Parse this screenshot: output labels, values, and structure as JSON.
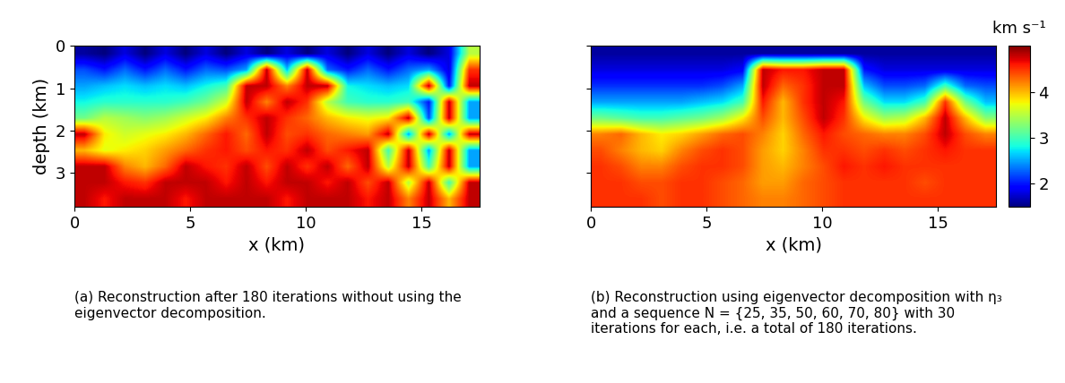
{
  "chart_data": [
    {
      "type": "heatmap",
      "title": "(a) Reconstruction after 180 iterations without using the eigenvector decomposition.",
      "x_label": "x (km)",
      "y_label": "depth (km)",
      "xlim": [
        0,
        17.5
      ],
      "ylim": [
        3.8,
        0
      ],
      "xticks": [
        0,
        5,
        10,
        15
      ],
      "yticks": [
        0,
        1,
        2,
        3
      ],
      "tick_labels": true,
      "cells": [
        [
          1.6,
          1.5,
          1.8,
          1.5,
          1.8,
          1.5,
          1.8,
          1.5,
          1.8,
          1.5,
          1.8,
          1.5,
          1.8,
          1.5,
          1.8,
          1.5,
          1.8,
          1.5,
          1.8,
          3.5
        ],
        [
          2.2,
          2.0,
          2.3,
          2.0,
          2.3,
          2.0,
          2.3,
          2.2,
          2.5,
          4.8,
          2.6,
          4.8,
          2.3,
          2.0,
          2.3,
          2.0,
          2.3,
          2.5,
          1.8,
          4.5
        ],
        [
          2.5,
          2.6,
          2.7,
          2.6,
          2.7,
          2.6,
          2.8,
          3.0,
          4.8,
          4.8,
          4.2,
          4.8,
          4.8,
          2.8,
          2.7,
          2.6,
          2.7,
          4.8,
          2.0,
          4.8
        ],
        [
          2.8,
          2.9,
          2.9,
          2.9,
          2.9,
          3.0,
          3.2,
          3.6,
          4.8,
          4.2,
          4.8,
          4.5,
          3.5,
          3.0,
          2.9,
          2.9,
          3.0,
          2.0,
          4.8,
          2.5
        ],
        [
          3.2,
          3.5,
          3.4,
          3.3,
          3.4,
          3.6,
          3.8,
          4.2,
          4.5,
          4.8,
          4.5,
          4.3,
          4.0,
          3.8,
          3.7,
          3.8,
          4.8,
          2.2,
          4.8,
          2.5
        ],
        [
          4.8,
          3.8,
          3.6,
          3.7,
          3.8,
          4.0,
          4.3,
          4.6,
          4.3,
          4.8,
          4.4,
          4.5,
          4.3,
          4.2,
          4.1,
          4.8,
          2.5,
          4.8,
          2.5,
          4.8
        ],
        [
          4.0,
          3.7,
          3.8,
          3.9,
          4.1,
          4.3,
          4.5,
          4.6,
          4.4,
          4.6,
          4.5,
          4.8,
          4.4,
          4.6,
          4.8,
          3.0,
          4.8,
          2.5,
          4.8,
          2.5
        ],
        [
          4.8,
          4.8,
          4.2,
          4.0,
          4.3,
          4.8,
          4.6,
          4.5,
          4.8,
          4.4,
          4.8,
          4.5,
          4.8,
          4.3,
          4.8,
          3.5,
          4.8,
          3.0,
          4.8,
          2.5
        ],
        [
          4.8,
          4.8,
          4.6,
          4.5,
          4.8,
          4.8,
          4.8,
          4.6,
          4.8,
          4.6,
          4.8,
          4.8,
          4.6,
          4.8,
          4.4,
          4.8,
          3.5,
          4.8,
          3.0,
          4.8
        ],
        [
          4.8,
          4.6,
          4.8,
          4.8,
          4.8,
          4.6,
          4.8,
          4.8,
          4.8,
          4.8,
          4.6,
          4.8,
          4.8,
          4.8,
          4.6,
          4.8,
          4.2,
          4.8,
          4.0,
          4.8
        ]
      ],
      "color_range": [
        1.5,
        5.0
      ]
    },
    {
      "type": "heatmap",
      "title": "(b) Reconstruction using eigenvector decomposition with η₃ and a sequence N = {25, 35, 50, 60, 70, 80} with 30 iterations for each, i.e. a total of 180 iterations.",
      "x_label": "x (km)",
      "xlim": [
        0,
        17.5
      ],
      "ylim": [
        3.8,
        0
      ],
      "xticks": [
        0,
        5,
        10,
        15
      ],
      "yticks": [
        0,
        1,
        2,
        3
      ],
      "tick_labels": "x",
      "cells": [
        [
          1.6,
          1.6,
          1.6,
          1.6,
          1.6,
          1.6,
          1.6,
          1.6,
          1.6,
          1.6,
          1.6,
          1.6,
          1.6,
          1.6,
          1.6,
          1.6,
          1.6,
          1.6,
          1.6,
          1.6
        ],
        [
          1.8,
          1.8,
          1.8,
          1.8,
          1.8,
          1.8,
          1.8,
          1.9,
          4.8,
          4.6,
          4.6,
          4.8,
          4.8,
          2.0,
          1.8,
          1.8,
          1.8,
          1.8,
          1.8,
          1.8
        ],
        [
          2.1,
          2.1,
          2.1,
          2.1,
          2.1,
          2.1,
          2.2,
          2.5,
          4.8,
          4.3,
          4.5,
          4.8,
          4.8,
          2.6,
          2.2,
          2.2,
          2.3,
          3.0,
          2.3,
          2.2
        ],
        [
          2.5,
          2.5,
          2.5,
          2.5,
          2.5,
          2.6,
          2.7,
          3.0,
          4.6,
          4.0,
          4.5,
          4.8,
          4.6,
          3.2,
          2.7,
          2.7,
          3.0,
          4.5,
          3.2,
          2.6
        ],
        [
          3.2,
          3.1,
          3.0,
          3.0,
          3.1,
          3.2,
          3.4,
          3.8,
          4.4,
          4.0,
          4.4,
          4.8,
          4.5,
          3.8,
          3.4,
          3.5,
          4.0,
          4.8,
          4.0,
          3.3
        ],
        [
          4.2,
          4.3,
          4.0,
          3.8,
          3.9,
          4.1,
          4.3,
          4.4,
          4.2,
          3.9,
          4.3,
          4.6,
          4.4,
          4.3,
          4.2,
          4.2,
          4.4,
          4.8,
          4.4,
          4.2
        ],
        [
          4.4,
          4.2,
          4.0,
          3.9,
          4.2,
          4.4,
          4.5,
          4.4,
          4.1,
          3.9,
          4.2,
          4.5,
          4.5,
          4.4,
          4.5,
          4.4,
          4.5,
          4.6,
          4.5,
          4.5
        ],
        [
          4.5,
          4.4,
          4.2,
          4.2,
          4.4,
          4.5,
          4.5,
          4.4,
          4.1,
          4.0,
          4.2,
          4.4,
          4.6,
          4.5,
          4.6,
          4.5,
          4.5,
          4.5,
          4.5,
          4.5
        ],
        [
          4.5,
          4.5,
          4.4,
          4.4,
          4.5,
          4.5,
          4.4,
          4.3,
          4.1,
          4.1,
          4.3,
          4.4,
          4.5,
          4.5,
          4.5,
          4.5,
          4.4,
          4.5,
          4.5,
          4.5
        ],
        [
          4.5,
          4.5,
          4.5,
          4.4,
          4.5,
          4.5,
          4.4,
          4.3,
          4.2,
          4.2,
          4.3,
          4.4,
          4.5,
          4.5,
          4.5,
          4.5,
          4.5,
          4.5,
          4.5,
          4.5
        ]
      ],
      "color_range": [
        1.5,
        5.0
      ],
      "colorbar": {
        "label": "km s⁻¹",
        "range": [
          1.5,
          5.0
        ],
        "ticks": [
          2,
          3,
          4
        ]
      }
    }
  ]
}
